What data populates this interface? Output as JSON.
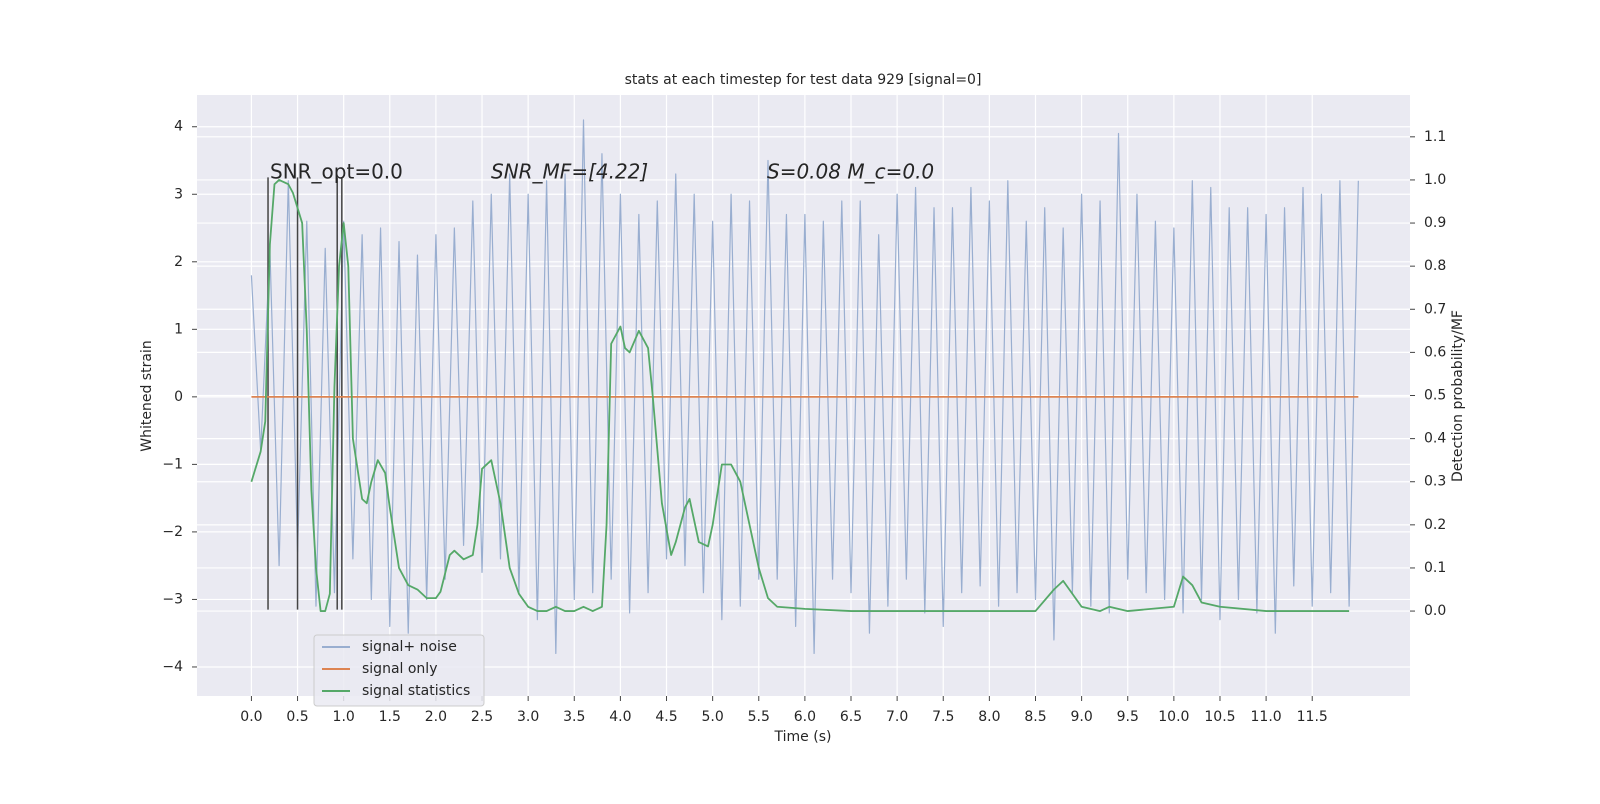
{
  "chart_data": {
    "type": "line",
    "title": "stats at each timestep for test data 929 [signal=0]",
    "xlabel": "Time (s)",
    "ylabel": "Whitened strain",
    "y2label": "Detection probability/MF",
    "annotations": [
      "SNR_opt=0.0",
      "SNR_MF=[4.22]",
      "S=0.08   M_c=0.0"
    ],
    "xlim": [
      -0.59,
      12.56
    ],
    "ylim": [
      -4.43,
      4.47
    ],
    "y2lim": [
      -0.197,
      1.197
    ],
    "xticks": [
      {
        "value": 0,
        "label": "0.0"
      },
      0.5,
      {
        "value": 1,
        "label": "1.0"
      },
      1.5,
      {
        "value": 2,
        "label": "2.0"
      },
      2.5,
      {
        "value": 3,
        "label": "3.0"
      },
      3.5,
      {
        "value": 4,
        "label": "4.0"
      },
      4.5,
      {
        "value": 5,
        "label": "5.0"
      },
      5.5,
      {
        "value": 6,
        "label": "6.0"
      },
      6.5,
      {
        "value": 7,
        "label": "7.0"
      },
      7.5,
      {
        "value": 8,
        "label": "8.0"
      },
      8.5,
      {
        "value": 9,
        "label": "9.0"
      },
      9.5,
      {
        "value": 10,
        "label": "10.0"
      },
      10.5,
      {
        "value": 11,
        "label": "11.0"
      },
      11.5
    ],
    "yticks": [
      {
        "value": -4,
        "label": "−4"
      },
      {
        "value": -3,
        "label": "−3"
      },
      {
        "value": -2,
        "label": "−2"
      },
      {
        "value": -1,
        "label": "−1"
      },
      0,
      1,
      2,
      3,
      4
    ],
    "y2ticks": [
      {
        "value": 0,
        "label": "0.0"
      },
      0.1,
      0.2,
      0.3,
      0.4,
      0.5,
      0.6,
      0.7,
      0.8,
      0.9,
      {
        "value": 1,
        "label": "1.0"
      },
      1.1
    ],
    "grid": true,
    "legend": "lower left",
    "vlines": {
      "x": [
        0.18,
        0.5,
        0.93,
        0.98
      ],
      "ymin": -3.15,
      "ymax": 3.25,
      "color": "#444444"
    },
    "series": [
      {
        "name": "signal+ noise",
        "color": "#99aed0",
        "x": [
          0,
          0.1,
          0.2,
          0.3,
          0.4,
          0.5,
          0.6,
          0.7,
          0.8,
          0.9,
          1,
          1.1,
          1.2,
          1.3,
          1.4,
          1.5,
          1.6,
          1.7,
          1.8,
          1.9,
          2,
          2.1,
          2.2,
          2.3,
          2.4,
          2.5,
          2.6,
          2.7,
          2.8,
          2.9,
          3,
          3.1,
          3.2,
          3.3,
          3.4,
          3.5,
          3.6,
          3.7,
          3.8,
          3.9,
          4,
          4.1,
          4.2,
          4.3,
          4.4,
          4.5,
          4.6,
          4.7,
          4.8,
          4.9,
          5,
          5.1,
          5.2,
          5.3,
          5.4,
          5.5,
          5.6,
          5.7,
          5.8,
          5.9,
          6,
          6.1,
          6.2,
          6.3,
          6.4,
          6.5,
          6.6,
          6.7,
          6.8,
          6.9,
          7,
          7.1,
          7.2,
          7.3,
          7.4,
          7.5,
          7.6,
          7.7,
          7.8,
          7.9,
          8,
          8.1,
          8.2,
          8.3,
          8.4,
          8.5,
          8.6,
          8.7,
          8.8,
          8.9,
          9,
          9.1,
          9.2,
          9.3,
          9.4,
          9.5,
          9.6,
          9.7,
          9.8,
          9.9,
          10,
          10.1,
          10.2,
          10.3,
          10.4,
          10.5,
          10.6,
          10.7,
          10.8,
          10.9,
          11,
          11.1,
          11.2,
          11.3,
          11.4,
          11.5,
          11.6,
          11.7,
          11.8,
          11.9,
          12
        ],
        "values": [
          1.8,
          -0.8,
          2.2,
          -2.5,
          3.2,
          -2.3,
          2.6,
          -3.1,
          2.2,
          -2.9,
          2.6,
          -2.4,
          2.4,
          -3.0,
          2.5,
          -3.4,
          2.3,
          -3.5,
          2.1,
          -3.0,
          2.4,
          -2.7,
          2.5,
          -2.2,
          2.9,
          -2.6,
          3.0,
          -2.4,
          3.3,
          -2.9,
          3.0,
          -3.3,
          3.2,
          -3.8,
          3.3,
          -3.0,
          4.1,
          -2.9,
          3.6,
          -2.7,
          3.0,
          -3.2,
          2.7,
          -2.9,
          2.9,
          -2.4,
          3.3,
          -2.5,
          3.0,
          -2.9,
          2.6,
          -3.3,
          3.0,
          -3.1,
          2.9,
          -2.7,
          3.5,
          -2.7,
          2.7,
          -3.4,
          2.7,
          -3.8,
          2.6,
          -2.7,
          2.9,
          -2.9,
          2.9,
          -3.5,
          2.4,
          -3.1,
          3.0,
          -2.7,
          3.1,
          -3.2,
          2.8,
          -3.4,
          2.8,
          -2.9,
          3.1,
          -2.8,
          2.9,
          -3.1,
          3.2,
          -2.9,
          2.6,
          -3.0,
          2.8,
          -3.6,
          2.5,
          -2.9,
          3.0,
          -3.1,
          2.9,
          -3.2,
          3.9,
          -2.7,
          3.0,
          -2.9,
          2.6,
          -3.0,
          2.5,
          -3.2,
          3.2,
          -3.0,
          3.1,
          -3.3,
          2.8,
          -3.0,
          2.8,
          -3.2,
          2.7,
          -3.5,
          2.8,
          -2.8,
          3.1,
          -3.1,
          3.0,
          -2.9,
          3.2,
          -3.1,
          3.2
        ]
      },
      {
        "name": "signal only",
        "color": "#dd8452",
        "x": [
          0,
          12
        ],
        "values": [
          0,
          0
        ]
      },
      {
        "name": "signal statistics",
        "color": "#55a868",
        "axis": "y2",
        "x": [
          0,
          0.1,
          0.15,
          0.2,
          0.25,
          0.3,
          0.4,
          0.45,
          0.55,
          0.6,
          0.65,
          0.7,
          0.75,
          0.8,
          0.85,
          0.9,
          0.95,
          1,
          1.05,
          1.1,
          1.15,
          1.2,
          1.25,
          1.3,
          1.37,
          1.45,
          1.5,
          1.6,
          1.7,
          1.8,
          1.9,
          2,
          2.05,
          2.15,
          2.2,
          2.3,
          2.4,
          2.45,
          2.5,
          2.6,
          2.7,
          2.8,
          2.9,
          3,
          3.1,
          3.2,
          3.3,
          3.4,
          3.5,
          3.6,
          3.7,
          3.8,
          3.85,
          3.9,
          4,
          4.05,
          4.1,
          4.2,
          4.3,
          4.35,
          4.45,
          4.55,
          4.6,
          4.7,
          4.75,
          4.85,
          4.95,
          5,
          5.1,
          5.2,
          5.3,
          5.4,
          5.5,
          5.6,
          5.7,
          6,
          6.5,
          7,
          7.5,
          8,
          8.5,
          8.7,
          8.8,
          9,
          9.2,
          9.3,
          9.5,
          10,
          10.1,
          10.2,
          10.3,
          10.5,
          11,
          11.9
        ],
        "values": [
          0.3,
          0.37,
          0.44,
          0.85,
          0.99,
          1.0,
          0.99,
          0.97,
          0.9,
          0.65,
          0.28,
          0.1,
          0.0,
          0.0,
          0.04,
          0.52,
          0.8,
          0.9,
          0.8,
          0.4,
          0.33,
          0.26,
          0.25,
          0.3,
          0.35,
          0.32,
          0.24,
          0.1,
          0.06,
          0.05,
          0.03,
          0.03,
          0.045,
          0.13,
          0.14,
          0.12,
          0.13,
          0.2,
          0.33,
          0.35,
          0.25,
          0.1,
          0.04,
          0.01,
          0.0,
          0.0,
          0.01,
          0.0,
          0.0,
          0.01,
          0.0,
          0.01,
          0.2,
          0.62,
          0.66,
          0.61,
          0.6,
          0.65,
          0.61,
          0.5,
          0.25,
          0.13,
          0.16,
          0.24,
          0.26,
          0.16,
          0.15,
          0.2,
          0.34,
          0.34,
          0.3,
          0.2,
          0.1,
          0.03,
          0.01,
          0.005,
          0.0,
          0.0,
          0.0,
          0.0,
          0.0,
          0.05,
          0.07,
          0.01,
          0.0,
          0.01,
          0.0,
          0.01,
          0.08,
          0.06,
          0.02,
          0.01,
          0.0,
          0.0
        ]
      }
    ]
  }
}
